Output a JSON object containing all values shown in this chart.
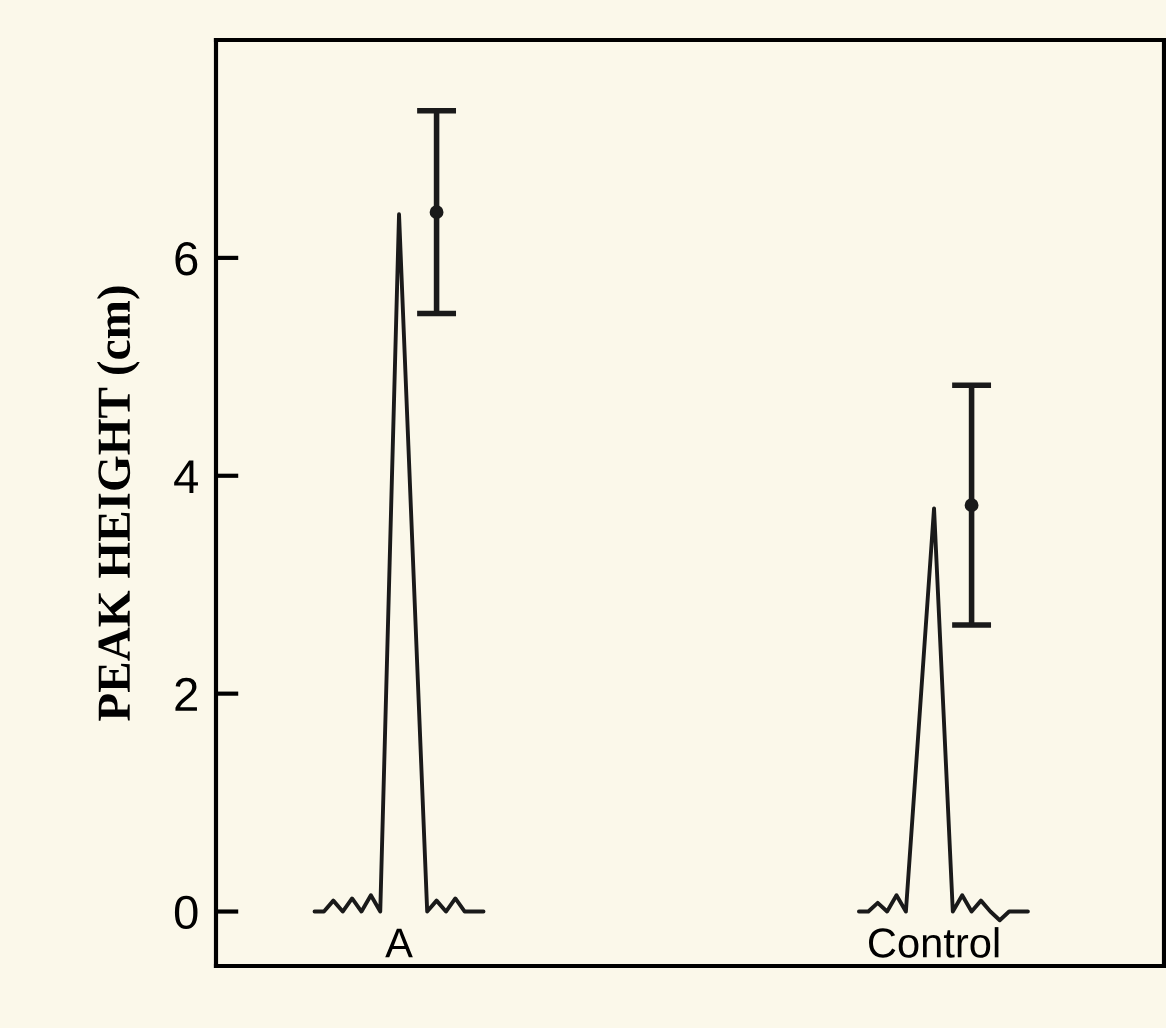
{
  "chart_data": {
    "type": "line",
    "ylabel": "PEAK HEIGHT (cm)",
    "ylim": [
      -0.5,
      8
    ],
    "yticks": [
      0,
      2,
      4,
      6
    ],
    "grid": false,
    "marker": "none",
    "line_style": "solid",
    "categories": [
      null,
      null,
      null,
      null,
      null,
      null,
      null,
      null,
      null,
      null,
      null,
      null,
      null,
      null,
      null,
      null,
      null,
      null,
      null,
      "A",
      null,
      null,
      null,
      null,
      null,
      null,
      null,
      null,
      null,
      null,
      null,
      null,
      null,
      null,
      null,
      null,
      null,
      null,
      null,
      null,
      null,
      null,
      null,
      null,
      null,
      null,
      null,
      null,
      null,
      null,
      null,
      null,
      null,
      null,
      null,
      null,
      null,
      null,
      null,
      null,
      null,
      null,
      null,
      null,
      null,
      null,
      null,
      null,
      null,
      null,
      null,
      null,
      null,
      null,
      null,
      null,
      "Control",
      null,
      null,
      null,
      null,
      null,
      null,
      null,
      null,
      null,
      null,
      null,
      null,
      null,
      null,
      null,
      null,
      null,
      null,
      null,
      null,
      null,
      null,
      null,
      null
    ],
    "series": [
      {
        "color": "#1a1a1a",
        "values": [
          null,
          null,
          null,
          null,
          null,
          null,
          null,
          null,
          null,
          null,
          0,
          0,
          0.1,
          0,
          0.12,
          0,
          0.15,
          0,
          3.2,
          6.4,
          4.27,
          2.13,
          0,
          0.1,
          0,
          0.12,
          0,
          0,
          0,
          null,
          null,
          null,
          null,
          null,
          null,
          null,
          null,
          null,
          null,
          null,
          null,
          null,
          null,
          null,
          null,
          null,
          null,
          null,
          null,
          null,
          null,
          null,
          null,
          null,
          null,
          null,
          null,
          null,
          null,
          null,
          null,
          null,
          null,
          null,
          null,
          null,
          null,
          null,
          null,
          null,
          null,
          null,
          null,
          null,
          null,
          null,
          null,
          null,
          null,
          null,
          null,
          null,
          null,
          null,
          null,
          null,
          null,
          null,
          null,
          null,
          null,
          null,
          null,
          null,
          null,
          null,
          null,
          null,
          null,
          null,
          null
        ]
      },
      {
        "color": "#1a1a1a",
        "values": [
          null,
          null,
          null,
          null,
          null,
          null,
          null,
          null,
          null,
          null,
          null,
          null,
          null,
          null,
          null,
          null,
          null,
          null,
          null,
          null,
          null,
          null,
          null,
          null,
          null,
          null,
          null,
          null,
          null,
          null,
          null,
          null,
          null,
          null,
          null,
          null,
          null,
          null,
          null,
          null,
          null,
          null,
          null,
          null,
          null,
          null,
          null,
          null,
          null,
          null,
          null,
          null,
          null,
          null,
          null,
          null,
          null,
          null,
          null,
          null,
          null,
          null,
          null,
          null,
          null,
          null,
          null,
          null,
          0,
          0,
          0.08,
          0,
          0.15,
          0,
          1.23,
          2.47,
          3.7,
          1.85,
          0,
          0.15,
          0,
          0.1,
          0,
          -0.08,
          0,
          0,
          0,
          null,
          null,
          null,
          null,
          null,
          null,
          null,
          null,
          null,
          null,
          null,
          null,
          null,
          null
        ]
      },
      {
        "type": "scatter",
        "color": "#1a1a1a",
        "marker": "circle",
        "values": [
          null,
          null,
          null,
          null,
          null,
          null,
          null,
          null,
          null,
          null,
          null,
          null,
          null,
          null,
          null,
          null,
          null,
          null,
          null,
          null,
          null,
          null,
          null,
          6.42,
          null,
          null,
          null,
          null,
          null,
          null,
          null,
          null,
          null,
          null,
          null,
          null,
          null,
          null,
          null,
          null,
          null,
          null,
          null,
          null,
          null,
          null,
          null,
          null,
          null,
          null,
          null,
          null,
          null,
          null,
          null,
          null,
          null,
          null,
          null,
          null,
          null,
          null,
          null,
          null,
          null,
          null,
          null,
          null,
          null,
          null,
          null,
          null,
          null,
          null,
          null,
          null,
          null,
          null,
          null,
          null,
          3.73,
          null,
          null,
          null,
          null,
          null,
          null,
          null,
          null,
          null,
          null,
          null,
          null,
          null,
          null,
          null,
          null,
          null,
          null,
          null,
          null
        ],
        "errors": [
          null,
          null,
          null,
          null,
          null,
          null,
          null,
          null,
          null,
          null,
          null,
          null,
          null,
          null,
          null,
          null,
          null,
          null,
          null,
          null,
          null,
          null,
          null,
          0.93,
          null,
          null,
          null,
          null,
          null,
          null,
          null,
          null,
          null,
          null,
          null,
          null,
          null,
          null,
          null,
          null,
          null,
          null,
          null,
          null,
          null,
          null,
          null,
          null,
          null,
          null,
          null,
          null,
          null,
          null,
          null,
          null,
          null,
          null,
          null,
          null,
          null,
          null,
          null,
          null,
          null,
          null,
          null,
          null,
          null,
          null,
          null,
          null,
          null,
          null,
          null,
          null,
          null,
          null,
          null,
          null,
          1.1,
          null,
          null,
          null,
          null,
          null,
          null,
          null,
          null,
          null,
          null,
          null,
          null,
          null,
          null,
          null,
          null,
          null,
          null,
          null,
          null
        ]
      }
    ]
  }
}
